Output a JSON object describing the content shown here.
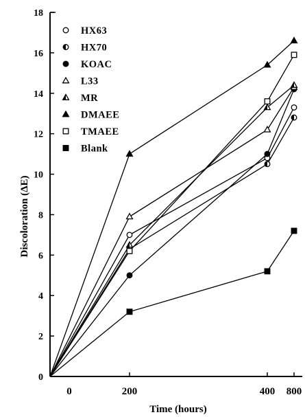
{
  "chart_data": {
    "type": "line",
    "title": "",
    "xlabel": "Time (hours)",
    "ylabel": "Discoloration (ΔE)",
    "x": [
      0,
      200,
      400,
      800
    ],
    "x_tick_labels": [
      "0",
      "200",
      "400",
      "800"
    ],
    "ylim": [
      0,
      18
    ],
    "y_ticks": [
      0,
      2,
      4,
      6,
      8,
      10,
      12,
      14,
      16,
      18
    ],
    "legend_position": "top-left",
    "series": [
      {
        "name": "HX63",
        "marker": "circle-open",
        "values": [
          0,
          7.0,
          10.8,
          13.3
        ]
      },
      {
        "name": "HX70",
        "marker": "circle-half",
        "values": [
          0,
          6.3,
          10.5,
          12.8
        ]
      },
      {
        "name": "KOAC",
        "marker": "circle-filled",
        "values": [
          0,
          5.0,
          11.0,
          14.2
        ]
      },
      {
        "name": "L33",
        "marker": "triangle-open",
        "values": [
          0,
          7.9,
          12.2,
          14.3
        ]
      },
      {
        "name": "MR",
        "marker": "triangle-half",
        "values": [
          0,
          6.5,
          13.3,
          14.4
        ]
      },
      {
        "name": "DMAEE",
        "marker": "triangle-filled",
        "values": [
          0,
          11.0,
          15.4,
          16.6
        ]
      },
      {
        "name": "TMAEE",
        "marker": "square-open",
        "values": [
          0,
          6.2,
          13.6,
          15.9
        ]
      },
      {
        "name": "Blank",
        "marker": "square-filled",
        "values": [
          0,
          3.2,
          5.2,
          7.2
        ]
      }
    ]
  }
}
